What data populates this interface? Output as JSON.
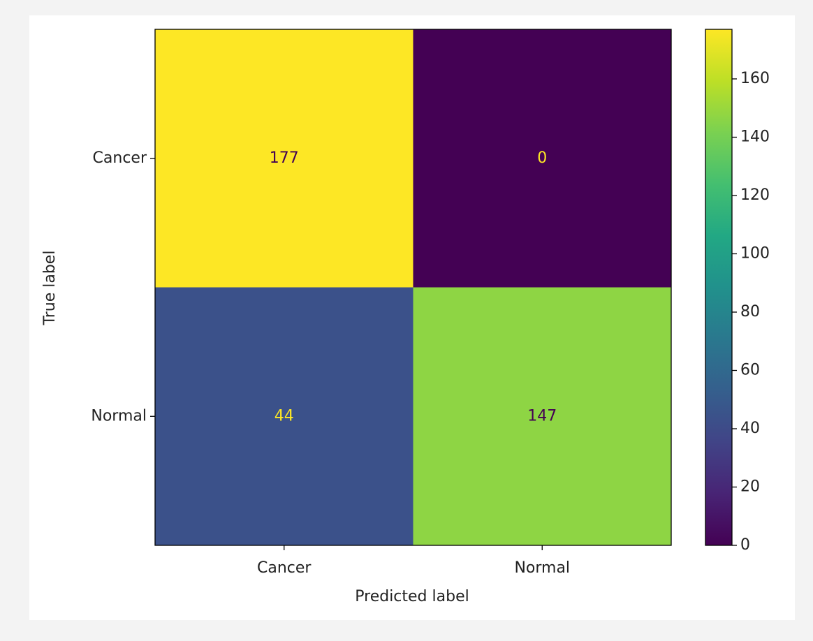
{
  "chart_data": {
    "type": "heatmap",
    "x_categories": [
      "Cancer",
      "Normal"
    ],
    "y_categories": [
      "Cancer",
      "Normal"
    ],
    "values": [
      [
        177,
        0
      ],
      [
        44,
        147
      ]
    ],
    "xlabel": "Predicted label",
    "ylabel": "True label",
    "colormap": "viridis",
    "clim": [
      0,
      177
    ],
    "cticks": [
      0,
      20,
      40,
      60,
      80,
      100,
      120,
      140,
      160
    ]
  }
}
